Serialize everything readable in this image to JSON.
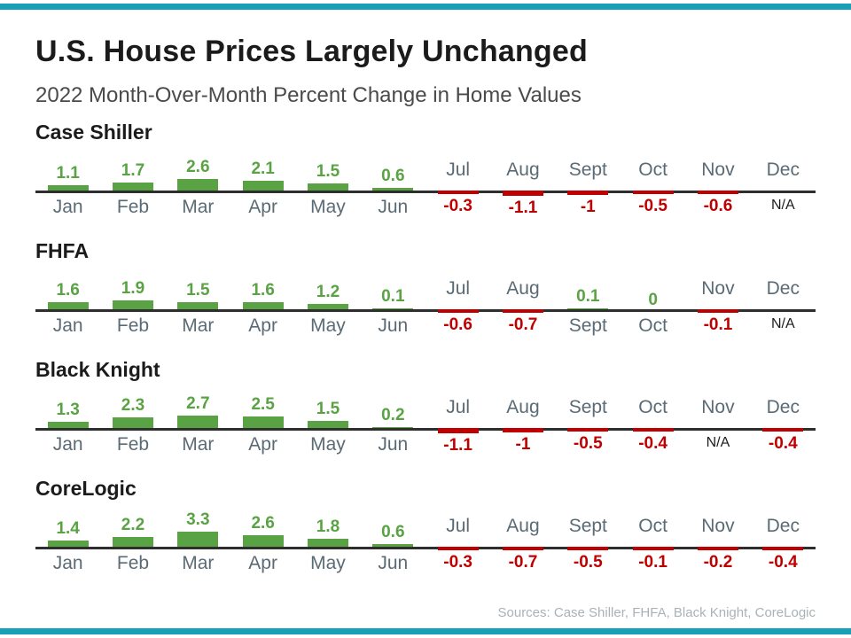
{
  "page": {
    "title": "U.S. House Prices Largely Unchanged",
    "subtitle": "2022 Month-Over-Month Percent Change in Home Values",
    "sources": "Sources: Case Shiller, FHFA, Black Knight, CoreLogic"
  },
  "colors": {
    "teal": "#1AA0B6",
    "green": "#5AA344",
    "red": "#C00000",
    "month_gray": "#5B6B75"
  },
  "chart_data": [
    {
      "type": "bar",
      "title": "Case Shiller",
      "categories": [
        "Jan",
        "Feb",
        "Mar",
        "Apr",
        "May",
        "Jun",
        "Jul",
        "Aug",
        "Sept",
        "Oct",
        "Nov",
        "Dec"
      ],
      "values": [
        1.1,
        1.7,
        2.6,
        2.1,
        1.5,
        0.6,
        -0.3,
        -1.1,
        -1,
        -0.5,
        -0.6,
        null
      ],
      "value_labels": [
        "1.1",
        "1.7",
        "2.6",
        "2.1",
        "1.5",
        "0.6",
        "-0.3",
        "-1.1",
        "-1",
        "-0.5",
        "-0.6",
        "N/A"
      ],
      "ylabel": "Percent change",
      "baseline": 0
    },
    {
      "type": "bar",
      "title": "FHFA",
      "categories": [
        "Jan",
        "Feb",
        "Mar",
        "Apr",
        "May",
        "Jun",
        "Jul",
        "Aug",
        "Sept",
        "Oct",
        "Nov",
        "Dec"
      ],
      "values": [
        1.6,
        1.9,
        1.5,
        1.6,
        1.2,
        0.1,
        -0.6,
        -0.7,
        0.1,
        0,
        -0.1,
        null
      ],
      "value_labels": [
        "1.6",
        "1.9",
        "1.5",
        "1.6",
        "1.2",
        "0.1",
        "-0.6",
        "-0.7",
        "0.1",
        "0",
        "-0.1",
        "N/A"
      ],
      "ylabel": "Percent change",
      "baseline": 0
    },
    {
      "type": "bar",
      "title": "Black Knight",
      "categories": [
        "Jan",
        "Feb",
        "Mar",
        "Apr",
        "May",
        "Jun",
        "Jul",
        "Aug",
        "Sept",
        "Oct",
        "Nov",
        "Dec"
      ],
      "values": [
        1.3,
        2.3,
        2.7,
        2.5,
        1.5,
        0.2,
        -1.1,
        -1,
        -0.5,
        -0.4,
        null,
        -0.4
      ],
      "value_labels": [
        "1.3",
        "2.3",
        "2.7",
        "2.5",
        "1.5",
        "0.2",
        "-1.1",
        "-1",
        "-0.5",
        "-0.4",
        "N/A",
        "-0.4"
      ],
      "ylabel": "Percent change",
      "baseline": 0
    },
    {
      "type": "bar",
      "title": "CoreLogic",
      "categories": [
        "Jan",
        "Feb",
        "Mar",
        "Apr",
        "May",
        "Jun",
        "Jul",
        "Aug",
        "Sept",
        "Oct",
        "Nov",
        "Dec"
      ],
      "values": [
        1.4,
        2.2,
        3.3,
        2.6,
        1.8,
        0.6,
        -0.3,
        -0.7,
        -0.5,
        -0.1,
        -0.2,
        -0.4
      ],
      "value_labels": [
        "1.4",
        "2.2",
        "3.3",
        "2.6",
        "1.8",
        "0.6",
        "-0.3",
        "-0.7",
        "-0.5",
        "-0.1",
        "-0.2",
        "-0.4"
      ],
      "ylabel": "Percent change",
      "baseline": 0
    }
  ]
}
